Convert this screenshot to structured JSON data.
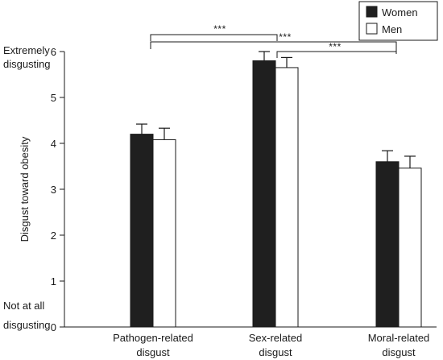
{
  "chart_data": {
    "type": "bar",
    "categories": [
      [
        "Pathogen-related",
        "disgust"
      ],
      [
        "Sex-related",
        "disgust"
      ],
      [
        "Moral-related",
        "disgust"
      ]
    ],
    "series": [
      {
        "name": "Women",
        "color": "#1f1f1f",
        "values": [
          4.2,
          5.8,
          3.6
        ],
        "errors": [
          0.22,
          0.2,
          0.24
        ]
      },
      {
        "name": "Men",
        "color": "#ffffff",
        "values": [
          4.08,
          5.65,
          3.46
        ],
        "errors": [
          0.25,
          0.22,
          0.26
        ]
      }
    ],
    "ylabel": "Disgust toward obesity",
    "ylim": [
      0,
      6
    ],
    "yticks": [
      0,
      1,
      2,
      3,
      4,
      5,
      6
    ],
    "scale_labels": {
      "top": [
        "Extremely",
        "disgusting"
      ],
      "bottom": [
        "Not at all",
        "disgusting"
      ]
    },
    "legend_position": "top-right",
    "significance": [
      {
        "from": 0,
        "to": 1,
        "label": "***"
      },
      {
        "from": 0,
        "to": 2,
        "label": "***"
      },
      {
        "from": 1,
        "to": 2,
        "label": "***"
      }
    ],
    "grid": false
  }
}
